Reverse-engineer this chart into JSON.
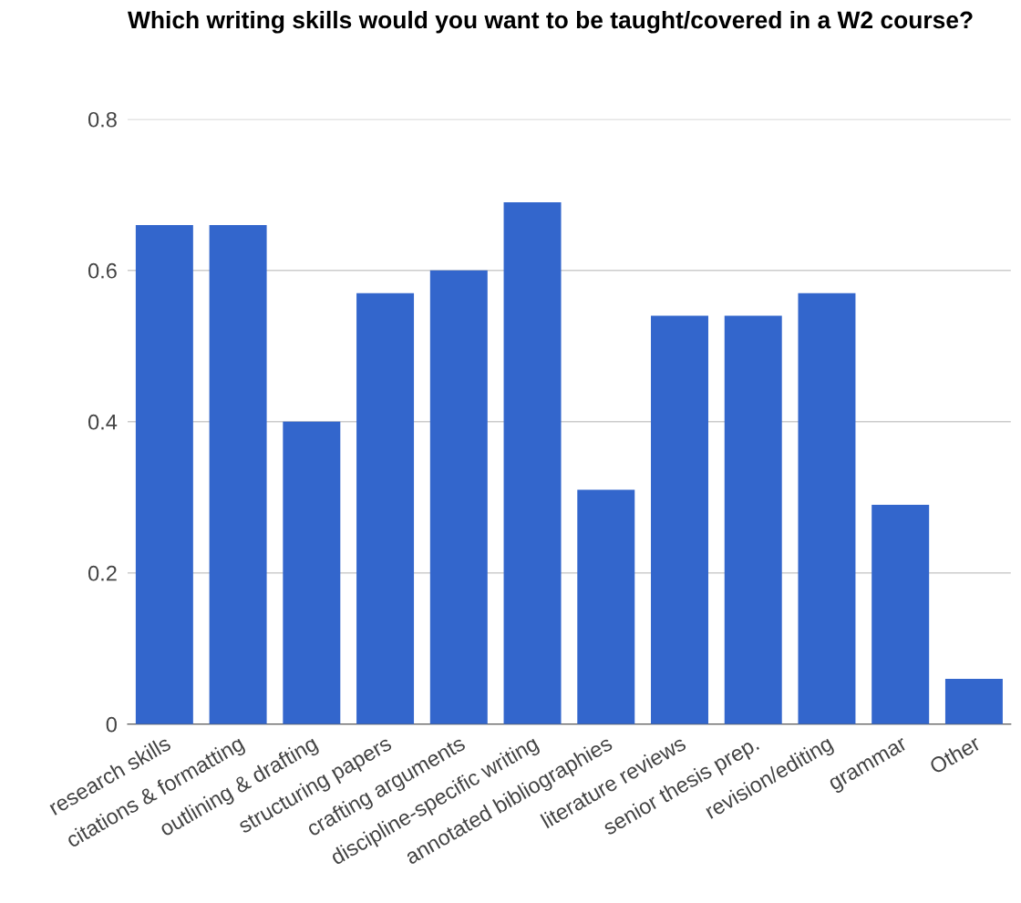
{
  "chart_data": {
    "type": "bar",
    "title": "Which writing skills would you want to be taught/covered in a W2 course?",
    "categories": [
      "research skills",
      "citations & formatting",
      "outlining & drafting",
      "structuring papers",
      "crafting arguments",
      "discipline-specific writing",
      "annotated bibliographies",
      "literature reviews",
      "senior thesis prep.",
      "revision/editing",
      "grammar",
      "Other"
    ],
    "values": [
      0.66,
      0.66,
      0.4,
      0.57,
      0.6,
      0.69,
      0.31,
      0.54,
      0.54,
      0.57,
      0.29,
      0.06
    ],
    "color": "#3366cc",
    "ylim": [
      0,
      0.8
    ],
    "yticks": [
      0,
      0.2,
      0.4,
      0.6,
      0.8
    ],
    "grid": "y",
    "legend": false
  }
}
